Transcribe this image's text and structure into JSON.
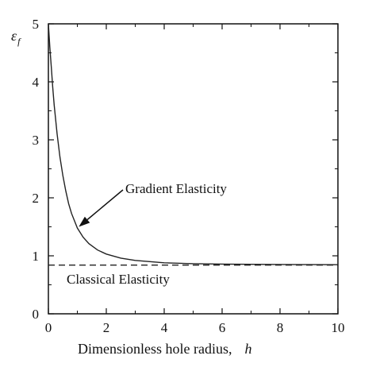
{
  "chart_data": {
    "type": "line",
    "title": "",
    "xlabel": "Dimensionless hole radius,",
    "xlabel_symbol": "h",
    "ylabel": "ε",
    "ylabel_subscript": "f",
    "xlim": [
      0,
      10
    ],
    "ylim": [
      0,
      5
    ],
    "xticks": [
      0,
      2,
      4,
      6,
      8,
      10
    ],
    "yticks": [
      0,
      1,
      2,
      3,
      4,
      5
    ],
    "grid": false,
    "legend": "none",
    "series": [
      {
        "name": "Gradient Elasticity",
        "style": "solid",
        "color": "#222222",
        "x": [
          0,
          0.05,
          0.1,
          0.15,
          0.2,
          0.3,
          0.4,
          0.5,
          0.6,
          0.7,
          0.8,
          1.0,
          1.2,
          1.4,
          1.7,
          2.0,
          2.5,
          3.0,
          3.5,
          4.0,
          5.0,
          6.0,
          7.0,
          8.0,
          9.0,
          10.0
        ],
        "y": [
          5.0,
          4.6,
          4.25,
          3.9,
          3.6,
          3.1,
          2.7,
          2.38,
          2.12,
          1.9,
          1.73,
          1.48,
          1.32,
          1.21,
          1.1,
          1.03,
          0.96,
          0.92,
          0.9,
          0.88,
          0.865,
          0.858,
          0.853,
          0.85,
          0.848,
          0.846
        ]
      },
      {
        "name": "Classical Elasticity",
        "style": "dashed",
        "color": "#222222",
        "x": [
          0,
          10
        ],
        "y": [
          0.84,
          0.84
        ]
      }
    ],
    "annotations": [
      {
        "text": "Gradient Elasticity",
        "arrow_to": [
          1.05,
          1.5
        ]
      },
      {
        "text": "Classical Elasticity"
      }
    ]
  }
}
